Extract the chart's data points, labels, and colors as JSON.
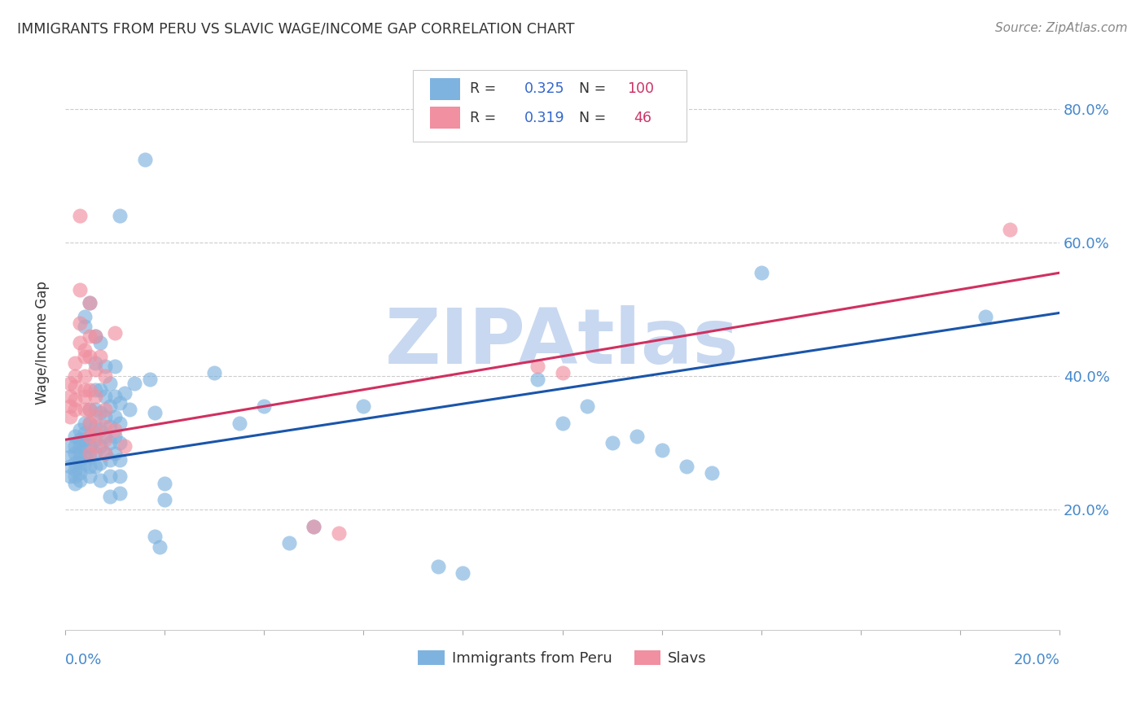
{
  "title": "IMMIGRANTS FROM PERU VS SLAVIC WAGE/INCOME GAP CORRELATION CHART",
  "source": "Source: ZipAtlas.com",
  "ylabel": "Wage/Income Gap",
  "y_ticks": [
    0.2,
    0.4,
    0.6,
    0.8
  ],
  "y_tick_labels": [
    "20.0%",
    "40.0%",
    "60.0%",
    "80.0%"
  ],
  "x_lim": [
    0.0,
    0.2
  ],
  "y_lim": [
    0.02,
    0.88
  ],
  "watermark": "ZIPAtlas",
  "watermark_color": "#c8d8f0",
  "blue_color": "#7eb3df",
  "pink_color": "#f090a0",
  "blue_line_color": "#1a55aa",
  "pink_line_color": "#d03060",
  "title_color": "#333333",
  "source_color": "#888888",
  "tick_label_color": "#4488cc",
  "grid_color": "#cccccc",
  "background_color": "#ffffff",
  "blue_line_x": [
    0.0,
    0.2
  ],
  "blue_line_y": [
    0.268,
    0.495
  ],
  "pink_line_x": [
    0.0,
    0.2
  ],
  "pink_line_y": [
    0.305,
    0.555
  ],
  "blue_points": [
    [
      0.001,
      0.295
    ],
    [
      0.001,
      0.28
    ],
    [
      0.001,
      0.265
    ],
    [
      0.001,
      0.25
    ],
    [
      0.002,
      0.31
    ],
    [
      0.002,
      0.295
    ],
    [
      0.002,
      0.285
    ],
    [
      0.002,
      0.27
    ],
    [
      0.002,
      0.26
    ],
    [
      0.002,
      0.25
    ],
    [
      0.002,
      0.24
    ],
    [
      0.003,
      0.32
    ],
    [
      0.003,
      0.305
    ],
    [
      0.003,
      0.295
    ],
    [
      0.003,
      0.285
    ],
    [
      0.003,
      0.275
    ],
    [
      0.003,
      0.265
    ],
    [
      0.003,
      0.255
    ],
    [
      0.003,
      0.245
    ],
    [
      0.004,
      0.49
    ],
    [
      0.004,
      0.475
    ],
    [
      0.004,
      0.33
    ],
    [
      0.004,
      0.315
    ],
    [
      0.004,
      0.305
    ],
    [
      0.004,
      0.295
    ],
    [
      0.004,
      0.28
    ],
    [
      0.004,
      0.27
    ],
    [
      0.005,
      0.51
    ],
    [
      0.005,
      0.35
    ],
    [
      0.005,
      0.33
    ],
    [
      0.005,
      0.31
    ],
    [
      0.005,
      0.295
    ],
    [
      0.005,
      0.28
    ],
    [
      0.005,
      0.265
    ],
    [
      0.005,
      0.25
    ],
    [
      0.006,
      0.46
    ],
    [
      0.006,
      0.42
    ],
    [
      0.006,
      0.38
    ],
    [
      0.006,
      0.35
    ],
    [
      0.006,
      0.325
    ],
    [
      0.006,
      0.305
    ],
    [
      0.006,
      0.285
    ],
    [
      0.006,
      0.265
    ],
    [
      0.007,
      0.45
    ],
    [
      0.007,
      0.38
    ],
    [
      0.007,
      0.345
    ],
    [
      0.007,
      0.32
    ],
    [
      0.007,
      0.295
    ],
    [
      0.007,
      0.27
    ],
    [
      0.007,
      0.245
    ],
    [
      0.008,
      0.415
    ],
    [
      0.008,
      0.37
    ],
    [
      0.008,
      0.34
    ],
    [
      0.008,
      0.31
    ],
    [
      0.008,
      0.285
    ],
    [
      0.009,
      0.39
    ],
    [
      0.009,
      0.355
    ],
    [
      0.009,
      0.325
    ],
    [
      0.009,
      0.3
    ],
    [
      0.009,
      0.275
    ],
    [
      0.009,
      0.25
    ],
    [
      0.009,
      0.22
    ],
    [
      0.01,
      0.415
    ],
    [
      0.01,
      0.37
    ],
    [
      0.01,
      0.34
    ],
    [
      0.01,
      0.31
    ],
    [
      0.01,
      0.285
    ],
    [
      0.011,
      0.64
    ],
    [
      0.011,
      0.36
    ],
    [
      0.011,
      0.33
    ],
    [
      0.011,
      0.3
    ],
    [
      0.011,
      0.275
    ],
    [
      0.011,
      0.25
    ],
    [
      0.011,
      0.225
    ],
    [
      0.012,
      0.375
    ],
    [
      0.013,
      0.35
    ],
    [
      0.014,
      0.39
    ],
    [
      0.016,
      0.725
    ],
    [
      0.017,
      0.395
    ],
    [
      0.018,
      0.345
    ],
    [
      0.018,
      0.16
    ],
    [
      0.019,
      0.145
    ],
    [
      0.02,
      0.24
    ],
    [
      0.02,
      0.215
    ],
    [
      0.03,
      0.405
    ],
    [
      0.035,
      0.33
    ],
    [
      0.04,
      0.355
    ],
    [
      0.045,
      0.15
    ],
    [
      0.05,
      0.175
    ],
    [
      0.06,
      0.355
    ],
    [
      0.075,
      0.115
    ],
    [
      0.08,
      0.105
    ],
    [
      0.095,
      0.395
    ],
    [
      0.1,
      0.33
    ],
    [
      0.105,
      0.355
    ],
    [
      0.11,
      0.3
    ],
    [
      0.115,
      0.31
    ],
    [
      0.12,
      0.29
    ],
    [
      0.125,
      0.265
    ],
    [
      0.13,
      0.255
    ],
    [
      0.14,
      0.555
    ],
    [
      0.185,
      0.49
    ]
  ],
  "pink_points": [
    [
      0.001,
      0.39
    ],
    [
      0.001,
      0.37
    ],
    [
      0.001,
      0.355
    ],
    [
      0.001,
      0.34
    ],
    [
      0.002,
      0.42
    ],
    [
      0.002,
      0.4
    ],
    [
      0.002,
      0.385
    ],
    [
      0.002,
      0.365
    ],
    [
      0.002,
      0.35
    ],
    [
      0.003,
      0.64
    ],
    [
      0.003,
      0.53
    ],
    [
      0.003,
      0.48
    ],
    [
      0.003,
      0.45
    ],
    [
      0.004,
      0.44
    ],
    [
      0.004,
      0.43
    ],
    [
      0.004,
      0.4
    ],
    [
      0.004,
      0.38
    ],
    [
      0.004,
      0.37
    ],
    [
      0.004,
      0.35
    ],
    [
      0.005,
      0.51
    ],
    [
      0.005,
      0.46
    ],
    [
      0.005,
      0.43
    ],
    [
      0.005,
      0.38
    ],
    [
      0.005,
      0.35
    ],
    [
      0.005,
      0.33
    ],
    [
      0.005,
      0.31
    ],
    [
      0.005,
      0.285
    ],
    [
      0.006,
      0.46
    ],
    [
      0.006,
      0.41
    ],
    [
      0.006,
      0.37
    ],
    [
      0.006,
      0.34
    ],
    [
      0.006,
      0.315
    ],
    [
      0.006,
      0.295
    ],
    [
      0.007,
      0.43
    ],
    [
      0.008,
      0.4
    ],
    [
      0.008,
      0.35
    ],
    [
      0.008,
      0.325
    ],
    [
      0.008,
      0.305
    ],
    [
      0.008,
      0.285
    ],
    [
      0.01,
      0.465
    ],
    [
      0.01,
      0.32
    ],
    [
      0.012,
      0.295
    ],
    [
      0.05,
      0.175
    ],
    [
      0.055,
      0.165
    ],
    [
      0.095,
      0.415
    ],
    [
      0.1,
      0.405
    ],
    [
      0.19,
      0.62
    ]
  ]
}
